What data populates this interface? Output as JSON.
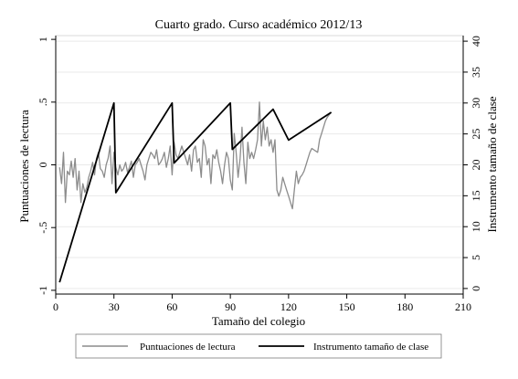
{
  "chart_data": {
    "type": "line",
    "title": "Cuarto grado. Curso académico 2012/13",
    "xlabel": "Tamaño del colegio",
    "ylabel": "Puntuaciones de lectura",
    "y2label": "Instrumento tamaño de clase",
    "xlim": [
      0,
      210
    ],
    "ylim": [
      -1.03,
      1.03
    ],
    "y2lim": [
      -0.9,
      40.9
    ],
    "x_ticks": [
      "0",
      "30",
      "60",
      "90",
      "120",
      "150",
      "180",
      "210"
    ],
    "y_ticks": [
      "-1",
      "-.5",
      "0",
      ".5",
      "1"
    ],
    "y2_ticks": [
      "0",
      "5",
      "10",
      "15",
      "20",
      "25",
      "30",
      "35",
      "40"
    ],
    "grid": true,
    "legend_position": "bottom",
    "series": [
      {
        "name": "Puntuaciones de lectura",
        "axis": "left",
        "color": "#8c8c8c",
        "x": [
          2,
          3,
          4,
          5,
          6,
          7,
          8,
          9,
          10,
          11,
          12,
          13,
          14,
          15,
          16,
          17,
          18,
          19,
          20,
          21,
          22,
          23,
          24,
          25,
          26,
          27,
          28,
          29,
          30,
          31,
          32,
          33,
          34,
          35,
          36,
          37,
          38,
          39,
          40,
          41,
          42,
          43,
          44,
          45,
          46,
          47,
          48,
          49,
          50,
          51,
          52,
          53,
          54,
          55,
          56,
          57,
          58,
          59,
          60,
          61,
          62,
          63,
          64,
          65,
          66,
          67,
          68,
          69,
          70,
          71,
          72,
          73,
          74,
          75,
          76,
          77,
          78,
          79,
          80,
          81,
          82,
          83,
          84,
          85,
          86,
          87,
          88,
          89,
          90,
          91,
          92,
          93,
          94,
          95,
          96,
          97,
          98,
          99,
          100,
          101,
          102,
          103,
          104,
          105,
          106,
          107,
          108,
          109,
          110,
          111,
          112,
          113,
          114,
          115,
          116,
          117,
          118,
          119,
          120,
          121,
          122,
          123,
          124,
          125,
          126,
          127,
          128,
          129,
          130,
          131,
          132,
          133,
          134,
          135,
          136,
          137,
          138,
          139,
          140,
          141,
          142
        ],
        "y": [
          -0.02,
          -0.15,
          0.1,
          -0.3,
          -0.05,
          -0.08,
          0.03,
          -0.1,
          0.05,
          -0.2,
          -0.05,
          -0.3,
          -0.15,
          -0.22,
          -0.18,
          -0.1,
          -0.05,
          0.02,
          -0.08,
          0.05,
          0.1,
          -0.03,
          -0.05,
          -0.1,
          0.0,
          0.05,
          0.15,
          -0.15,
          0.1,
          -0.02,
          -0.08,
          0.0,
          -0.05,
          -0.03,
          0.02,
          -0.06,
          -0.02,
          0.03,
          -0.1,
          0.0,
          0.02,
          0.05,
          0.0,
          -0.05,
          -0.12,
          0.0,
          0.05,
          0.1,
          0.08,
          0.05,
          0.12,
          0.0,
          0.02,
          0.05,
          0.1,
          -0.02,
          0.05,
          0.15,
          -0.08,
          0.18,
          0.08,
          0.05,
          0.1,
          0.15,
          0.1,
          0.05,
          0.0,
          0.08,
          -0.05,
          0.12,
          0.15,
          0.02,
          0.05,
          -0.1,
          0.2,
          0.15,
          0.0,
          0.05,
          -0.15,
          0.08,
          0.05,
          0.12,
          0.02,
          -0.05,
          -0.15,
          0.0,
          0.1,
          0.05,
          -0.12,
          -0.2,
          0.25,
          0.1,
          -0.1,
          0.05,
          0.3,
          0.02,
          -0.15,
          0.18,
          0.05,
          0.1,
          0.05,
          0.12,
          0.2,
          0.5,
          0.15,
          0.35,
          0.2,
          0.3,
          0.15,
          0.2,
          0.1,
          0.2,
          -0.2,
          -0.25,
          -0.2,
          -0.1,
          -0.15,
          -0.2,
          -0.25,
          -0.3,
          -0.35,
          -0.2,
          -0.05,
          -0.15,
          -0.1,
          -0.08,
          -0.05,
          0.0,
          0.05,
          0.1,
          0.13,
          0.12,
          0.11,
          0.1,
          0.2,
          0.25,
          0.3,
          0.35,
          0.38,
          0.4,
          0.42
        ]
      },
      {
        "name": "Instrumento tamaño de clase",
        "axis": "right",
        "color": "#000000",
        "x": [
          2,
          30,
          31,
          60,
          61,
          90,
          91,
          112,
          120,
          142
        ],
        "y": [
          1,
          30,
          15.5,
          30,
          20.3,
          30,
          22.5,
          29,
          24,
          28.5
        ]
      }
    ]
  }
}
